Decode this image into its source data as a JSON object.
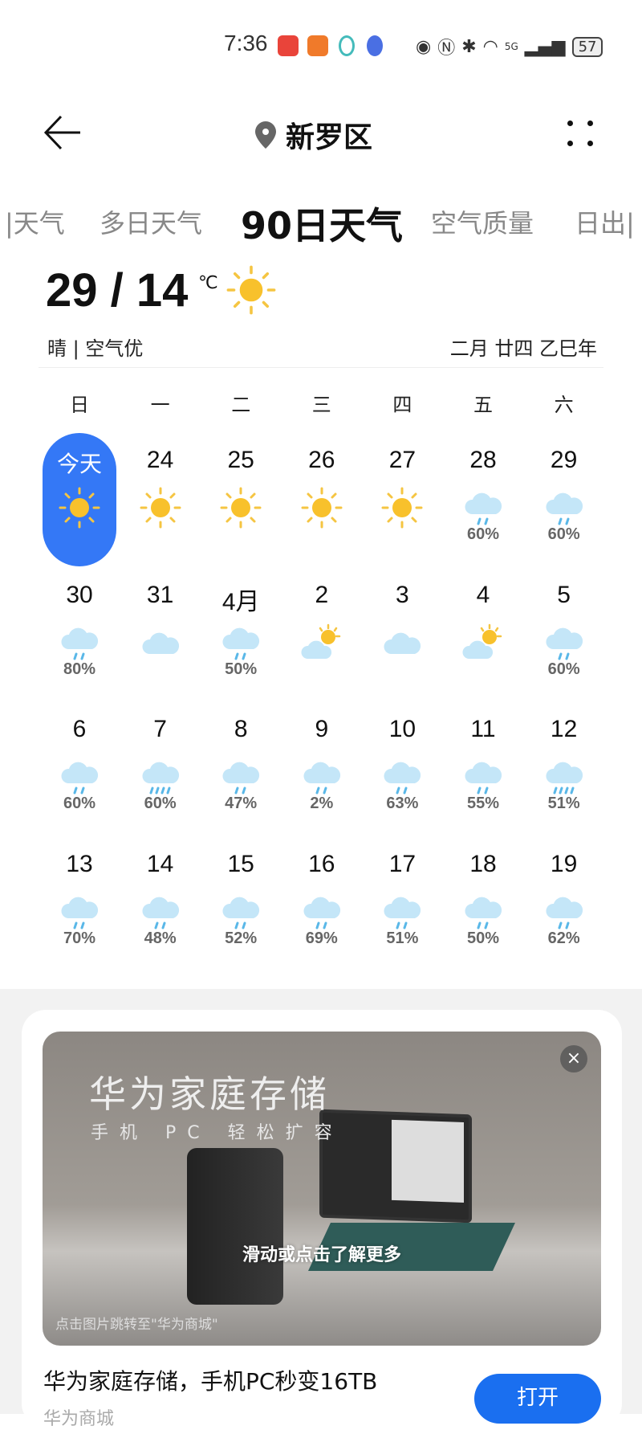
{
  "status_bar": {
    "time": "7:36",
    "battery": "57",
    "network": "5G"
  },
  "header": {
    "location": "新罗区"
  },
  "tabs": [
    {
      "label": "|天气"
    },
    {
      "label": "多日天气"
    },
    {
      "label": "90日天气",
      "active": true
    },
    {
      "label": "空气质量"
    },
    {
      "label": "日出|"
    }
  ],
  "today": {
    "temp": "29 / 14",
    "unit": "℃",
    "condition": "晴 | 空气优",
    "lunar": "二月 廿四 乙巳年",
    "icon": "sun-icon"
  },
  "weekdays": [
    "日",
    "一",
    "二",
    "三",
    "四",
    "五",
    "六"
  ],
  "days": [
    {
      "d": "今天",
      "icon": "sun",
      "p": ""
    },
    {
      "d": "24",
      "icon": "sun",
      "p": ""
    },
    {
      "d": "25",
      "icon": "sun",
      "p": ""
    },
    {
      "d": "26",
      "icon": "sun",
      "p": ""
    },
    {
      "d": "27",
      "icon": "sun",
      "p": ""
    },
    {
      "d": "28",
      "icon": "rain",
      "p": "60%"
    },
    {
      "d": "29",
      "icon": "rain",
      "p": "60%"
    },
    {
      "d": "30",
      "icon": "rain",
      "p": "80%"
    },
    {
      "d": "31",
      "icon": "cloud",
      "p": ""
    },
    {
      "d": "4月",
      "icon": "rain",
      "p": "50%"
    },
    {
      "d": "2",
      "icon": "partly",
      "p": ""
    },
    {
      "d": "3",
      "icon": "cloud",
      "p": ""
    },
    {
      "d": "4",
      "icon": "partly",
      "p": ""
    },
    {
      "d": "5",
      "icon": "rain",
      "p": "60%"
    },
    {
      "d": "6",
      "icon": "rain",
      "p": "60%"
    },
    {
      "d": "7",
      "icon": "heavy-rain",
      "p": "60%"
    },
    {
      "d": "8",
      "icon": "rain",
      "p": "47%"
    },
    {
      "d": "9",
      "icon": "rain",
      "p": "2%"
    },
    {
      "d": "10",
      "icon": "rain",
      "p": "63%"
    },
    {
      "d": "11",
      "icon": "rain",
      "p": "55%"
    },
    {
      "d": "12",
      "icon": "heavy-rain",
      "p": "51%"
    },
    {
      "d": "13",
      "icon": "rain",
      "p": "70%"
    },
    {
      "d": "14",
      "icon": "rain",
      "p": "48%"
    },
    {
      "d": "15",
      "icon": "rain",
      "p": "52%"
    },
    {
      "d": "16",
      "icon": "rain",
      "p": "69%"
    },
    {
      "d": "17",
      "icon": "rain",
      "p": "51%"
    },
    {
      "d": "18",
      "icon": "rain",
      "p": "50%"
    },
    {
      "d": "19",
      "icon": "rain",
      "p": "62%"
    }
  ],
  "ad": {
    "headline": "华为家庭存储",
    "subline": "手机 PC 轻松扩容",
    "hint": "滑动或点击了解更多",
    "jump": "点击图片跳转至\"华为商城\"",
    "title": "华为家庭存储，手机PC秒变16TB",
    "source": "华为商城",
    "open_label": "打开",
    "close": "×"
  },
  "colors": {
    "accent": "#3478f6",
    "button": "#1a6ff0",
    "sun": "#f8c12c",
    "cloud": "#bfe3f7",
    "rain": "#5ab8e8"
  }
}
